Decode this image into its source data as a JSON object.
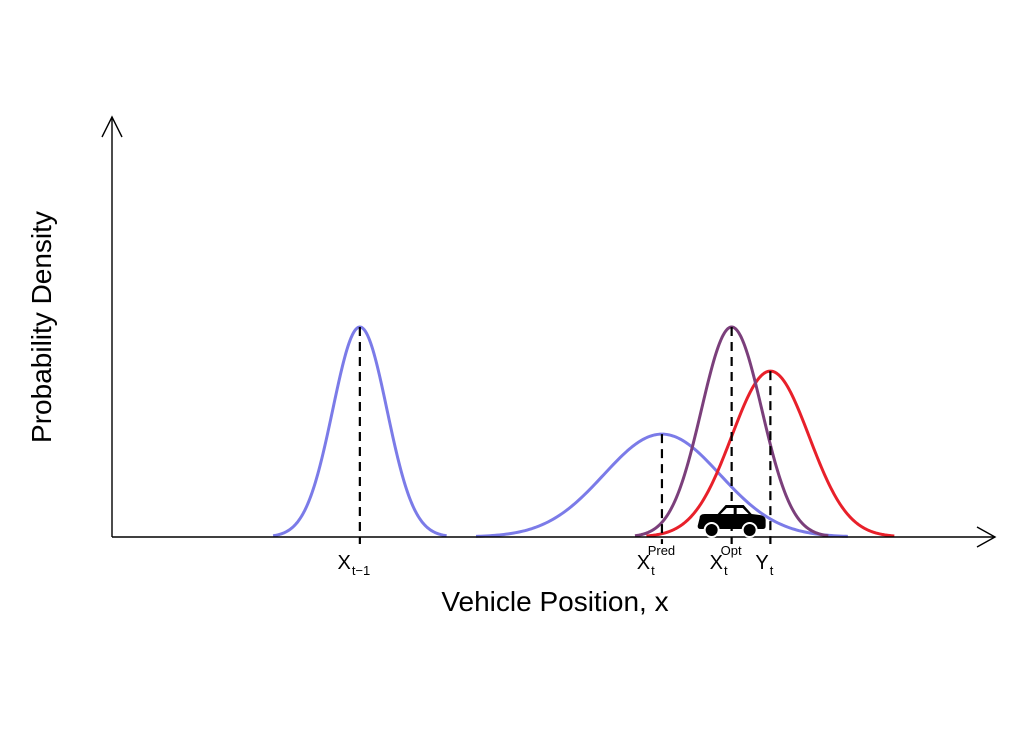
{
  "chart_data": {
    "type": "line",
    "xlabel": "Vehicle Position, x",
    "ylabel": "Probability Density",
    "xlim": [
      -12,
      102
    ],
    "ylim": [
      0,
      1.0
    ],
    "grid": false,
    "series": [
      {
        "key": "prev",
        "color": "#7b7be8",
        "mean": 20,
        "sd": 3.5,
        "peak": 0.5
      },
      {
        "key": "pred",
        "color": "#7b7be8",
        "mean": 59,
        "sd": 7.5,
        "peak": 0.245
      },
      {
        "key": "obs",
        "color": "#e8202a",
        "mean": 73,
        "sd": 5,
        "peak": 0.395
      },
      {
        "key": "opt",
        "color": "#7b3f7b",
        "mean": 68,
        "sd": 3.9,
        "peak": 0.5
      }
    ],
    "markers": [
      {
        "key": "prev",
        "x": 20,
        "height": 0.5,
        "main": "X",
        "sub": "t−1",
        "sup": ""
      },
      {
        "key": "pred",
        "x": 59,
        "height": 0.245,
        "main": "X",
        "sub": "t",
        "sup": "Pred"
      },
      {
        "key": "opt",
        "x": 68,
        "height": 0.5,
        "main": "X",
        "sub": "t",
        "sup": "Opt"
      },
      {
        "key": "obs",
        "x": 73,
        "height": 0.395,
        "main": "Y",
        "sub": "t",
        "sup": ""
      }
    ],
    "vehicle_icon": {
      "name": "car-icon",
      "x": 68,
      "color": "#000000"
    }
  }
}
